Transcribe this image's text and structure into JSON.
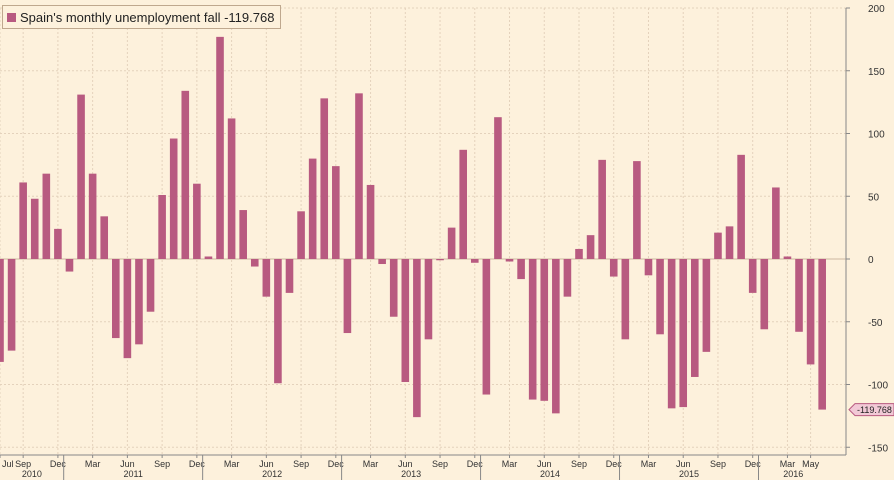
{
  "chart_data": {
    "type": "bar",
    "series": [
      {
        "name": "Spain's monthly unemployment fall",
        "color": "#b85a80",
        "values": [
          -82,
          -73,
          61,
          48,
          68,
          24,
          -10,
          131,
          68,
          34,
          -63,
          -79,
          -68,
          -42,
          51,
          96,
          134,
          60,
          2,
          177,
          112,
          39,
          -6,
          -30,
          -99,
          -27,
          38,
          80,
          128,
          74,
          -59,
          132,
          59,
          -4,
          -46,
          -98,
          -126,
          -64,
          -1,
          25,
          87,
          -3,
          -108,
          113,
          -2,
          -16,
          -112,
          -113,
          -123,
          -30,
          8,
          19,
          79,
          -14,
          -64,
          78,
          -13,
          -60,
          -119,
          -118,
          -94,
          -74,
          21,
          26,
          83,
          -27,
          -56,
          57,
          2,
          -58,
          -84,
          -120
        ]
      }
    ],
    "last_value_label": "-119.768",
    "ylim": [
      -150,
      200
    ],
    "yticks": [
      "200",
      "150",
      "100",
      "50",
      "0",
      "-50",
      "-100",
      "-150"
    ],
    "month_ticks": [
      {
        "label": "Jul",
        "index": 0
      },
      {
        "label": "Sep",
        "index": 2
      },
      {
        "label": "Dec",
        "index": 5
      },
      {
        "label": "Mar",
        "index": 8
      },
      {
        "label": "Jun",
        "index": 11
      },
      {
        "label": "Sep",
        "index": 14
      },
      {
        "label": "Dec",
        "index": 17
      },
      {
        "label": "Mar",
        "index": 20
      },
      {
        "label": "Jun",
        "index": 23
      },
      {
        "label": "Sep",
        "index": 26
      },
      {
        "label": "Dec",
        "index": 29
      },
      {
        "label": "Mar",
        "index": 32
      },
      {
        "label": "Jun",
        "index": 35
      },
      {
        "label": "Sep",
        "index": 38
      },
      {
        "label": "Dec",
        "index": 41
      },
      {
        "label": "Mar",
        "index": 44
      },
      {
        "label": "Jun",
        "index": 47
      },
      {
        "label": "Sep",
        "index": 50
      },
      {
        "label": "Dec",
        "index": 53
      },
      {
        "label": "Mar",
        "index": 56
      },
      {
        "label": "Jun",
        "index": 59
      },
      {
        "label": "Sep",
        "index": 62
      },
      {
        "label": "Dec",
        "index": 65
      },
      {
        "label": "Mar",
        "index": 68
      },
      {
        "label": "May",
        "index": 70
      }
    ],
    "years": [
      {
        "label": "2010",
        "start": 0,
        "end": 5
      },
      {
        "label": "2011",
        "start": 6,
        "end": 17
      },
      {
        "label": "2012",
        "start": 18,
        "end": 29
      },
      {
        "label": "2013",
        "start": 30,
        "end": 41
      },
      {
        "label": "2014",
        "start": 42,
        "end": 53
      },
      {
        "label": "2015",
        "start": 54,
        "end": 65
      },
      {
        "label": "2016",
        "start": 66,
        "end": 71
      }
    ],
    "legend_position": "top-left",
    "grid": true
  },
  "legend": {
    "text": "Spain's monthly unemployment fall -119.768"
  },
  "colors": {
    "background": "#fdf1dc",
    "bar": "#b85a80",
    "grid": "#e4d2bc",
    "axis": "#888888"
  }
}
